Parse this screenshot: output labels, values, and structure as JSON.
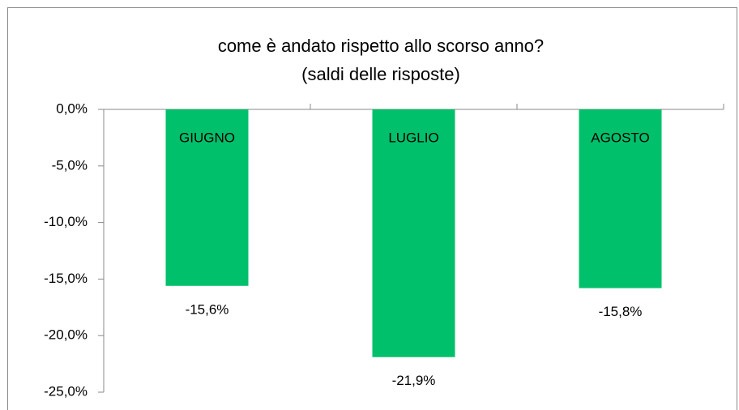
{
  "chart_data": {
    "type": "bar",
    "title": "come è andato rispetto allo scorso anno?",
    "subtitle": "(saldi delle risposte)",
    "categories": [
      "GIUGNO",
      "LUGLIO",
      "AGOSTO"
    ],
    "values": [
      -15.6,
      -21.9,
      -15.8
    ],
    "value_labels": [
      "-15,6%",
      "-21,9%",
      "-15,8%"
    ],
    "color": "#00c06b",
    "ylim": [
      -25,
      0
    ],
    "yticks": [
      {
        "value": 0,
        "label": "0,0%"
      },
      {
        "value": -5,
        "label": "-5,0%"
      },
      {
        "value": -10,
        "label": "-10,0%"
      },
      {
        "value": -15,
        "label": "-15,0%"
      },
      {
        "value": -20,
        "label": "-20,0%"
      },
      {
        "value": -25,
        "label": "-25,0%"
      }
    ],
    "grid": false
  }
}
